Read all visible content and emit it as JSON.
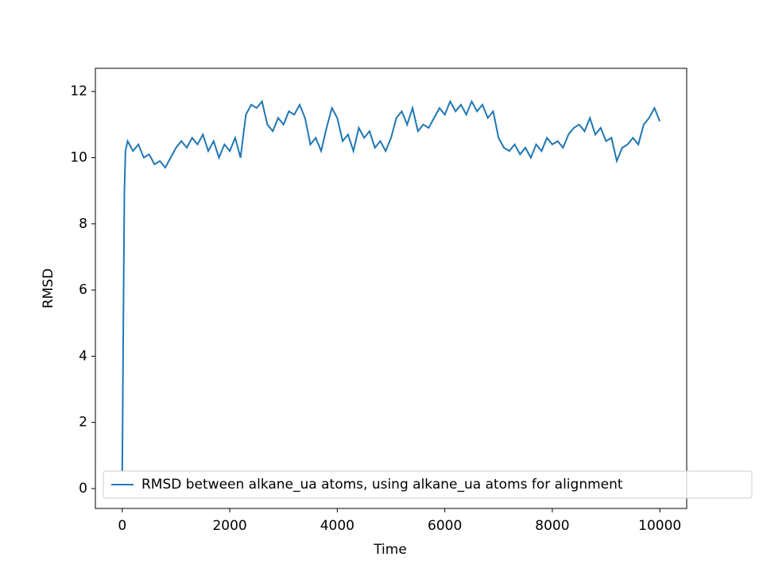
{
  "chart_data": {
    "type": "line",
    "xlabel": "Time",
    "ylabel": "RMSD",
    "x": [
      0,
      20,
      40,
      60,
      100,
      200,
      300,
      400,
      500,
      600,
      700,
      800,
      900,
      1000,
      1100,
      1200,
      1300,
      1400,
      1500,
      1600,
      1700,
      1800,
      1900,
      2000,
      2100,
      2200,
      2300,
      2400,
      2500,
      2600,
      2700,
      2800,
      2900,
      3000,
      3100,
      3200,
      3300,
      3400,
      3500,
      3600,
      3700,
      3800,
      3900,
      4000,
      4100,
      4200,
      4300,
      4400,
      4500,
      4600,
      4700,
      4800,
      4900,
      5000,
      5100,
      5200,
      5300,
      5400,
      5500,
      5600,
      5700,
      5800,
      5900,
      6000,
      6100,
      6200,
      6300,
      6400,
      6500,
      6600,
      6700,
      6800,
      6900,
      7000,
      7100,
      7200,
      7300,
      7400,
      7500,
      7600,
      7700,
      7800,
      7900,
      8000,
      8100,
      8200,
      8300,
      8400,
      8500,
      8600,
      8700,
      8800,
      8900,
      9000,
      9100,
      9200,
      9300,
      9400,
      9500,
      9600,
      9700,
      9800,
      9900,
      10000
    ],
    "series": [
      {
        "name": "RMSD between alkane_ua atoms, using alkane_ua atoms for alignment",
        "color": "#1f77b4",
        "values": [
          0.5,
          5,
          9,
          10.2,
          10.5,
          10.2,
          10.4,
          10.0,
          10.1,
          9.8,
          9.9,
          9.7,
          10.0,
          10.3,
          10.5,
          10.3,
          10.6,
          10.4,
          10.7,
          10.2,
          10.5,
          10.0,
          10.4,
          10.2,
          10.6,
          10.0,
          11.3,
          11.6,
          11.5,
          11.7,
          11.0,
          10.8,
          11.2,
          11.0,
          11.4,
          11.3,
          11.6,
          11.2,
          10.4,
          10.6,
          10.2,
          10.9,
          11.5,
          11.2,
          10.5,
          10.7,
          10.2,
          10.9,
          10.6,
          10.8,
          10.3,
          10.5,
          10.2,
          10.6,
          11.2,
          11.4,
          11.0,
          11.5,
          10.8,
          11.0,
          10.9,
          11.2,
          11.5,
          11.3,
          11.7,
          11.4,
          11.6,
          11.3,
          11.7,
          11.4,
          11.6,
          11.2,
          11.4,
          10.6,
          10.3,
          10.2,
          10.4,
          10.1,
          10.3,
          10.0,
          10.4,
          10.2,
          10.6,
          10.4,
          10.5,
          10.3,
          10.7,
          10.9,
          11.0,
          10.8,
          11.2,
          10.7,
          10.9,
          10.5,
          10.6,
          9.9,
          10.3,
          10.4,
          10.6,
          10.4,
          11.0,
          11.2,
          11.5,
          11.1
        ]
      }
    ],
    "xlim": [
      -500,
      10500
    ],
    "xticks": [
      0,
      2000,
      4000,
      6000,
      8000,
      10000
    ],
    "ylim": [
      -0.6,
      12.7
    ],
    "yticks": [
      0,
      2,
      4,
      6,
      8,
      10,
      12
    ],
    "legend": "lower left",
    "grid": false
  }
}
